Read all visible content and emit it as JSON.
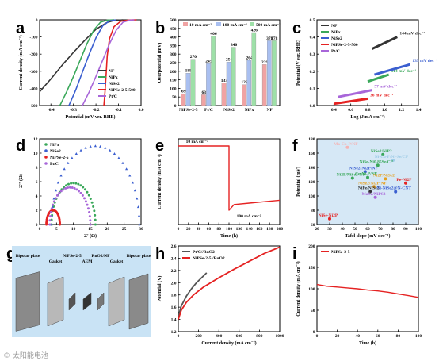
{
  "panel_letters": [
    "a",
    "b",
    "c",
    "d",
    "e",
    "f",
    "g",
    "h",
    "i"
  ],
  "watermark": "© 太阳能电池",
  "chart_data": [
    {
      "id": "a",
      "type": "line",
      "xlabel": "Potential (mV ver. RHE)",
      "ylabel": "Current density (mA cm⁻²)",
      "xlim": [
        -0.45,
        0.0
      ],
      "ylim": [
        -500,
        0
      ],
      "xticks": [
        "-0.4",
        "-0.3",
        "-0.2",
        "-0.1",
        "0.0"
      ],
      "yticks": [
        "0",
        "-100",
        "-200",
        "-300",
        "-400",
        "-500"
      ],
      "legend_position": "right",
      "series": [
        {
          "name": "NF",
          "color": "#333333",
          "points": [
            [
              -0.45,
              -420
            ],
            [
              -0.4,
              -345
            ],
            [
              -0.35,
              -265
            ],
            [
              -0.3,
              -190
            ],
            [
              -0.25,
              -120
            ],
            [
              -0.2,
              -55
            ],
            [
              -0.15,
              -15
            ],
            [
              -0.12,
              -4
            ],
            [
              -0.08,
              0
            ]
          ]
        },
        {
          "name": "NiPx",
          "color": "#3aa85a",
          "points": [
            [
              -0.36,
              -500
            ],
            [
              -0.33,
              -420
            ],
            [
              -0.3,
              -330
            ],
            [
              -0.27,
              -235
            ],
            [
              -0.24,
              -140
            ],
            [
              -0.21,
              -60
            ],
            [
              -0.18,
              -14
            ],
            [
              -0.15,
              -2
            ],
            [
              -0.12,
              0
            ]
          ]
        },
        {
          "name": "NiSe2",
          "color": "#3b5fd0",
          "points": [
            [
              -0.32,
              -500
            ],
            [
              -0.29,
              -410
            ],
            [
              -0.26,
              -305
            ],
            [
              -0.23,
              -200
            ],
            [
              -0.2,
              -105
            ],
            [
              -0.17,
              -35
            ],
            [
              -0.14,
              -6
            ],
            [
              -0.11,
              0
            ]
          ]
        },
        {
          "name": "NiPSe-2-5-500",
          "color": "#e52222",
          "points": [
            [
              -0.165,
              -500
            ],
            [
              -0.16,
              -420
            ],
            [
              -0.155,
              -320
            ],
            [
              -0.15,
              -210
            ],
            [
              -0.14,
              -110
            ],
            [
              -0.12,
              -40
            ],
            [
              -0.09,
              -8
            ],
            [
              -0.05,
              -1
            ],
            [
              -0.02,
              0
            ]
          ]
        },
        {
          "name": "Pt/C",
          "color": "#a866d9",
          "points": [
            [
              -0.26,
              -500
            ],
            [
              -0.23,
              -420
            ],
            [
              -0.2,
              -330
            ],
            [
              -0.17,
              -235
            ],
            [
              -0.14,
              -140
            ],
            [
              -0.11,
              -60
            ],
            [
              -0.08,
              -14
            ],
            [
              -0.05,
              -2
            ],
            [
              -0.03,
              0
            ]
          ]
        }
      ]
    },
    {
      "id": "b",
      "type": "bar",
      "ylabel": "Overpotential (mV)",
      "ylim": [
        0,
        500
      ],
      "yticks": [
        "0",
        "50",
        "100",
        "150",
        "200",
        "250",
        "300",
        "350",
        "400",
        "450",
        "500"
      ],
      "categories": [
        "NiPSe-2-5",
        "Pt/C",
        "NiSe2",
        "NiPx",
        "NF"
      ],
      "legend_position": "top",
      "series": [
        {
          "name": "10 mA cm⁻²",
          "color": "#f0a3a3",
          "values": [
            69,
            63,
            133,
            122,
            239
          ]
        },
        {
          "name": "100 mA cm⁻²",
          "color": "#a9bff0",
          "values": [
            189,
            245,
            254,
            264,
            378
          ]
        },
        {
          "name": "500 mA cm⁻²",
          "color": "#9ee0a8",
          "values": [
            270,
            406,
            340,
            426,
            378
          ]
        }
      ]
    },
    {
      "id": "c",
      "type": "line",
      "xlabel": "Log (J/mA cm⁻²)",
      "ylabel": "Potential (V ver. RHE)",
      "xlim": [
        0.2,
        1.4
      ],
      "ylim": [
        0.0,
        0.5
      ],
      "xticks": [
        "0.4",
        "0.6",
        "0.8",
        "1.0",
        "1.2",
        "1.4"
      ],
      "yticks": [
        "0.0",
        "0.1",
        "0.2",
        "0.3",
        "0.4",
        "0.5"
      ],
      "legend_position": "top-left",
      "series": [
        {
          "name": "NF",
          "color": "#333333",
          "points": [
            [
              0.85,
              0.33
            ],
            [
              1.15,
              0.4
            ]
          ],
          "slope_label": "144 mV dec⁻¹"
        },
        {
          "name": "NiPx",
          "color": "#3aa85a",
          "points": [
            [
              0.8,
              0.14
            ],
            [
              1.05,
              0.18
            ]
          ],
          "slope_label": "114 mV dec⁻¹"
        },
        {
          "name": "NiSe2",
          "color": "#3b5fd0",
          "points": [
            [
              0.88,
              0.18
            ],
            [
              1.3,
              0.24
            ]
          ],
          "slope_label": "135 mV dec⁻¹"
        },
        {
          "name": "NiPSe-2-5-500",
          "color": "#e52222",
          "points": [
            [
              0.4,
              0.01
            ],
            [
              0.8,
              0.04
            ]
          ],
          "slope_label": "36 mV dec⁻¹"
        },
        {
          "name": "Pt/C",
          "color": "#a866d9",
          "points": [
            [
              0.45,
              0.05
            ],
            [
              0.85,
              0.09
            ]
          ],
          "slope_label": "57 mV dec⁻¹"
        }
      ]
    },
    {
      "id": "d",
      "type": "scatter",
      "xlabel": "Z' (Ω)",
      "ylabel": "-Z'' (Ω)",
      "xlim": [
        0,
        30
      ],
      "ylim": [
        0,
        12
      ],
      "xticks": [
        "0",
        "5",
        "10",
        "15",
        "20",
        "25",
        "30"
      ],
      "yticks": [
        "0",
        "2",
        "4",
        "6",
        "8",
        "10",
        "12"
      ],
      "legend_position": "top-left",
      "series": [
        {
          "name": "NiPx",
          "color": "#3aa85a",
          "marker": "circle",
          "arc": {
            "start": 3.5,
            "end": 16.5,
            "peak": 5.8
          }
        },
        {
          "name": "NiSe2",
          "color": "#3b5fd0",
          "marker": "triangle",
          "arc": {
            "start": 3.5,
            "end": 29.5,
            "peak": 11.0
          }
        },
        {
          "name": "NiPSe-2-5",
          "color": "#e52222",
          "marker": "circle",
          "arc": {
            "start": 2.0,
            "end": 6.0,
            "peak": 2.0
          }
        },
        {
          "name": "Pt/C",
          "color": "#a866d9",
          "marker": "circle",
          "arc": {
            "start": 3.0,
            "end": 15.0,
            "peak": 5.2
          }
        }
      ]
    },
    {
      "id": "e",
      "type": "line",
      "xlabel": "Time (h)",
      "ylabel": "Current density (mA cm⁻²)",
      "xlim": [
        0,
        200
      ],
      "ylim": [
        -120,
        0
      ],
      "xticks": [
        "0",
        "20",
        "40",
        "60",
        "80",
        "100",
        "120",
        "140",
        "160",
        "180",
        "200"
      ],
      "annotations": [
        "10 mA cm⁻²",
        "100 mA cm⁻²"
      ],
      "series": [
        {
          "name": "NiPSe-2-5",
          "color": "#e52222",
          "points": [
            [
              0,
              -10
            ],
            [
              100,
              -10
            ],
            [
              100,
              -100
            ],
            [
              110,
              -92
            ],
            [
              140,
              -90
            ],
            [
              170,
              -88
            ],
            [
              200,
              -86
            ]
          ]
        }
      ]
    },
    {
      "id": "f",
      "type": "scatter",
      "xlabel": "Tafel slope (mV dec⁻¹)",
      "ylabel": "Potential (mV)",
      "xlim": [
        20,
        100
      ],
      "ylim": [
        60,
        180
      ],
      "xticks": [
        "20",
        "30",
        "40",
        "50",
        "60",
        "70",
        "80",
        "90",
        "100"
      ],
      "yticks": [
        "60",
        "80",
        "100",
        "120",
        "140",
        "160",
        "180"
      ],
      "points": [
        {
          "label": "Mo-Co-P/NF",
          "x": 44,
          "y": 168,
          "color": "#f5b3b3"
        },
        {
          "label": "NiSe2/NiP2",
          "x": 72,
          "y": 158,
          "color": "#3aa85a"
        },
        {
          "label": "Ni-Co-P/Ni-Se/CF",
          "x": 80,
          "y": 150,
          "color": "#9dcbe6"
        },
        {
          "label": "NiSe-Ni0.85Se/CP",
          "x": 68,
          "y": 143,
          "color": "#3aa85a"
        },
        {
          "label": "NiSe2-Ni2P/NF",
          "x": 58,
          "y": 134,
          "color": "#3b5fd0"
        },
        {
          "label": "Ni2P/NiSe2-NF",
          "x": 48,
          "y": 125,
          "color": "#3aa85a"
        },
        {
          "label": "Co-Ni-P/NF",
          "x": 60,
          "y": 126,
          "color": "#3aa85a"
        },
        {
          "label": "Ni2P/NiSe2",
          "x": 74,
          "y": 124,
          "color": "#e6a020"
        },
        {
          "label": "Fe-Ni2P",
          "x": 90,
          "y": 118,
          "color": "#e52222"
        },
        {
          "label": "NiSe2/Ni2P/NF",
          "x": 65,
          "y": 113,
          "color": "#e6a020"
        },
        {
          "label": "NiFe/NiSe2",
          "x": 62,
          "y": 106,
          "color": "#333333"
        },
        {
          "label": "Ni-NiSe2@N-CNT",
          "x": 82,
          "y": 106,
          "color": "#3b5fd0"
        },
        {
          "label": "MoS2/NiPS3",
          "x": 66,
          "y": 98,
          "color": "#a866d9"
        },
        {
          "label": "NiSe-Ni2P",
          "x": 30,
          "y": 68,
          "color": "#e52222"
        }
      ]
    },
    {
      "id": "g",
      "type": "diagram",
      "labels": [
        "Bipolar plate",
        "Gasket",
        "NiPSe-2-5",
        "AEM",
        "RuO2/NF",
        "Gasket",
        "Bipolar plate"
      ]
    },
    {
      "id": "h",
      "type": "line",
      "xlabel": "Current density (mA cm⁻²)",
      "ylabel": "Potential (V)",
      "xlim": [
        0,
        1000
      ],
      "ylim": [
        1.2,
        2.6
      ],
      "xticks": [
        "0",
        "200",
        "400",
        "600",
        "800",
        "1000"
      ],
      "yticks": [
        "1.2",
        "1.4",
        "1.6",
        "1.8",
        "2.0",
        "2.2",
        "2.4",
        "2.6"
      ],
      "legend_position": "top-left",
      "series": [
        {
          "name": "Pt/C//RuO2",
          "color": "#555555",
          "points": [
            [
              0,
              1.45
            ],
            [
              30,
              1.62
            ],
            [
              80,
              1.78
            ],
            [
              130,
              1.9
            ],
            [
              180,
              2.0
            ],
            [
              230,
              2.08
            ],
            [
              280,
              2.16
            ]
          ]
        },
        {
          "name": "NiPSe-2-5//RuO2",
          "color": "#e52222",
          "points": [
            [
              0,
              1.4
            ],
            [
              30,
              1.55
            ],
            [
              80,
              1.68
            ],
            [
              150,
              1.8
            ],
            [
              250,
              1.93
            ],
            [
              400,
              2.08
            ],
            [
              550,
              2.22
            ],
            [
              700,
              2.35
            ],
            [
              850,
              2.48
            ],
            [
              1000,
              2.58
            ]
          ]
        }
      ]
    },
    {
      "id": "i",
      "type": "line",
      "xlabel": "Time (h)",
      "ylabel": "Current density (mA cm⁻²)",
      "xlim": [
        0,
        100
      ],
      "ylim": [
        0,
        200
      ],
      "xticks": [
        "0",
        "20",
        "40",
        "60",
        "80",
        "100"
      ],
      "yticks": [
        "0",
        "50",
        "100",
        "150",
        "200"
      ],
      "legend_position": "top-left",
      "series": [
        {
          "name": "NiPSe-2-5",
          "color": "#e52222",
          "points": [
            [
              0,
              110
            ],
            [
              10,
              106
            ],
            [
              20,
              104
            ],
            [
              30,
              102
            ],
            [
              40,
              100
            ],
            [
              50,
              97
            ],
            [
              60,
              95
            ],
            [
              70,
              92
            ],
            [
              80,
              88
            ],
            [
              90,
              84
            ],
            [
              100,
              80
            ]
          ]
        }
      ]
    }
  ]
}
